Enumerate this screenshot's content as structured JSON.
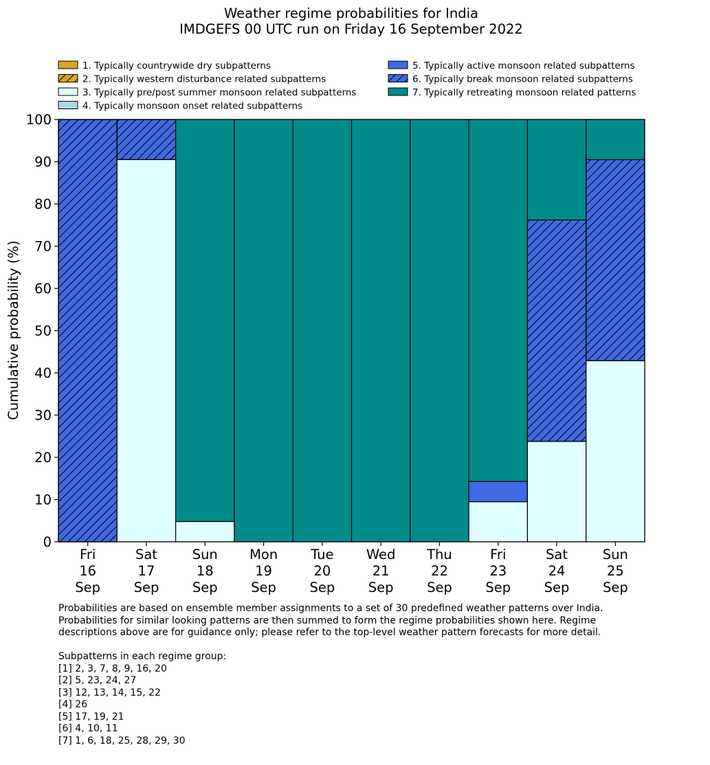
{
  "chart_data": {
    "type": "bar",
    "stacked": true,
    "title": "Weather regime probabilities for India",
    "subtitle": "IMDGEFS 00 UTC run on Friday 16 September 2022",
    "xlabel": "",
    "ylabel": "Cumulative probability (%)",
    "ylim": [
      0,
      100
    ],
    "yticks": [
      0,
      10,
      20,
      30,
      40,
      50,
      60,
      70,
      80,
      90,
      100
    ],
    "grid": false,
    "legend_position": "top",
    "categories": [
      [
        "Fri",
        "16",
        "Sep"
      ],
      [
        "Sat",
        "17",
        "Sep"
      ],
      [
        "Sun",
        "18",
        "Sep"
      ],
      [
        "Mon",
        "19",
        "Sep"
      ],
      [
        "Tue",
        "20",
        "Sep"
      ],
      [
        "Wed",
        "21",
        "Sep"
      ],
      [
        "Thu",
        "22",
        "Sep"
      ],
      [
        "Fri",
        "23",
        "Sep"
      ],
      [
        "Sat",
        "24",
        "Sep"
      ],
      [
        "Sun",
        "25",
        "Sep"
      ]
    ],
    "series": [
      {
        "name": "1. Typically countrywide dry subpatterns",
        "color": "#daa520",
        "hatch": false,
        "values": [
          0,
          0,
          0,
          0,
          0,
          0,
          0,
          0,
          0,
          0
        ]
      },
      {
        "name": "2. Typically western disturbance related subpatterns",
        "color": "#daa520",
        "hatch": true,
        "values": [
          0,
          0,
          0,
          0,
          0,
          0,
          0,
          0,
          0,
          0
        ]
      },
      {
        "name": "3. Typically pre/post summer monsoon related subpatterns",
        "color": "#e0ffff",
        "hatch": false,
        "values": [
          0,
          90.5,
          4.8,
          0,
          0,
          0,
          0,
          9.5,
          23.8,
          42.9
        ]
      },
      {
        "name": "4. Typically monsoon onset related subpatterns",
        "color": "#add8e6",
        "hatch": false,
        "values": [
          0,
          0,
          0,
          0,
          0,
          0,
          0,
          0,
          0,
          0
        ]
      },
      {
        "name": "5. Typically active monsoon related subpatterns",
        "color": "#4169e1",
        "hatch": false,
        "values": [
          0,
          0,
          0,
          0,
          0,
          0,
          0,
          4.8,
          0,
          0
        ]
      },
      {
        "name": "6. Typically break monsoon related subpatterns",
        "color": "#4169e1",
        "hatch": true,
        "values": [
          100,
          9.5,
          0,
          0,
          0,
          0,
          0,
          0,
          52.4,
          47.6
        ]
      },
      {
        "name": "7. Typically retreating monsoon related patterns",
        "color": "#008b8b",
        "hatch": false,
        "values": [
          0,
          0,
          95.2,
          100,
          100,
          100,
          100,
          85.7,
          23.8,
          9.5
        ]
      }
    ]
  },
  "notes": {
    "paragraph": [
      "Probabilities are based on ensemble member assignments to a set of 30 predefined weather patterns over India.",
      "Probabilities for similar looking patterns are then summed to form the regime probabilities shown here. Regime",
      "descriptions above are for guidance only; please refer to the top-level weather pattern forecasts for more detail."
    ],
    "subpatterns_heading": "Subpatterns in each regime group:",
    "subpatterns": [
      "[1] 2, 3, 7, 8, 9, 16, 20",
      "[2] 5, 23, 24, 27",
      "[3] 12, 13, 14, 15, 22",
      "[4] 26",
      "[5] 17, 19, 21",
      "[6] 4, 10, 11",
      "[7] 1, 6, 18, 25, 28, 29, 30"
    ]
  }
}
